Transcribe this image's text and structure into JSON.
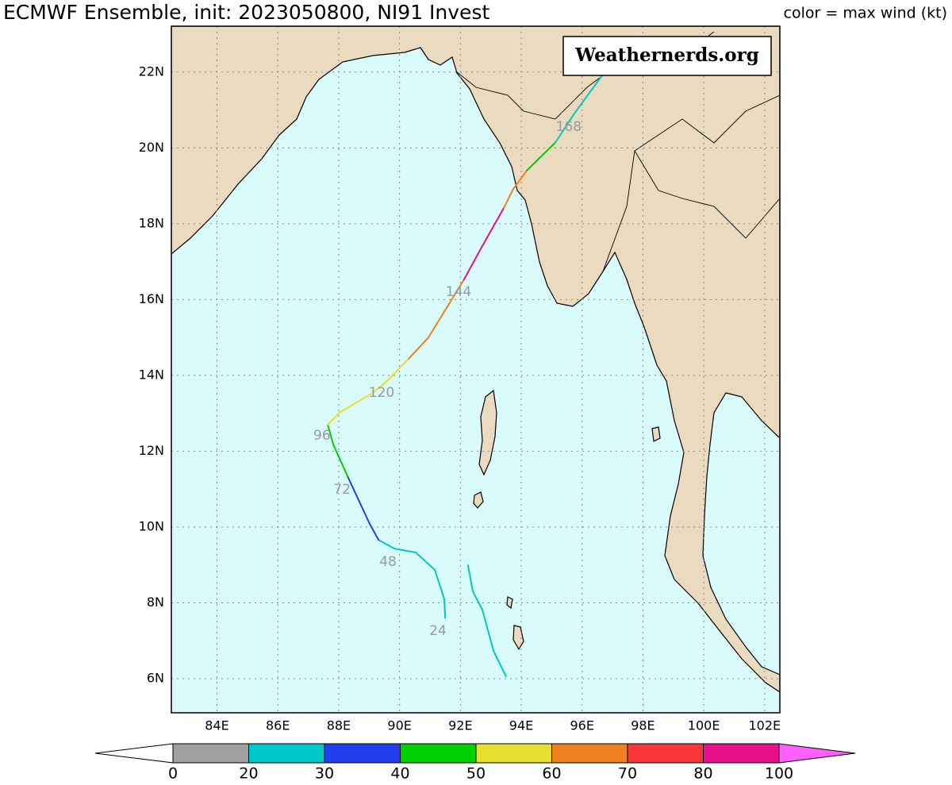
{
  "header": {
    "title": "ECMWF Ensemble, init: 2023050800, NI91 Invest",
    "legend_title": "color = max wind (kt)"
  },
  "watermark": "Weathernerds.org",
  "map": {
    "lonlim": [
      82.5,
      102.5
    ],
    "latlim": [
      5.1,
      23.21
    ],
    "lat_ticks": [
      {
        "value": 6,
        "label": "6N"
      },
      {
        "value": 8,
        "label": "8N"
      },
      {
        "value": 10,
        "label": "10N"
      },
      {
        "value": 12,
        "label": "12N"
      },
      {
        "value": 14,
        "label": "14N"
      },
      {
        "value": 16,
        "label": "16N"
      },
      {
        "value": 18,
        "label": "18N"
      },
      {
        "value": 20,
        "label": "20N"
      },
      {
        "value": 22,
        "label": "22N"
      }
    ],
    "lon_ticks": [
      {
        "value": 84,
        "label": "84E"
      },
      {
        "value": 86,
        "label": "86E"
      },
      {
        "value": 88,
        "label": "88E"
      },
      {
        "value": 90,
        "label": "90E"
      },
      {
        "value": 92,
        "label": "92E"
      },
      {
        "value": 94,
        "label": "94E"
      },
      {
        "value": 96,
        "label": "96E"
      },
      {
        "value": 98,
        "label": "98E"
      },
      {
        "value": 100,
        "label": "100E"
      },
      {
        "value": 102,
        "label": "102E"
      }
    ]
  },
  "tracks": [
    {
      "lon": [
        91.5,
        91.47,
        91.16,
        90.53,
        89.83,
        89.31,
        89.02,
        88.29,
        87.82,
        87.64,
        88.03,
        89.12,
        89.59,
        90.3,
        90.95,
        92.12,
        92.72,
        93.43,
        93.74,
        94.18,
        95.12,
        95.75,
        96.74
      ],
      "lat": [
        7.6,
        8.1,
        8.87,
        9.33,
        9.43,
        9.66,
        10.08,
        11.34,
        12.18,
        12.7,
        13.02,
        13.54,
        13.85,
        14.44,
        15.0,
        16.53,
        17.41,
        18.42,
        18.92,
        19.4,
        20.14,
        20.91,
        22.0
      ],
      "wind": [
        25,
        25,
        25,
        25,
        25,
        35,
        35,
        45,
        45,
        55,
        55,
        55,
        55,
        65,
        65,
        85,
        85,
        65,
        65,
        45,
        25,
        25
      ]
    },
    {
      "lon": [
        92.25,
        92.41,
        92.72,
        93.09,
        93.5
      ],
      "lat": [
        8.99,
        8.3,
        7.82,
        6.73,
        6.06
      ],
      "wind": [
        25,
        25,
        25,
        25
      ]
    }
  ],
  "hour_labels": [
    {
      "text": "24",
      "lon": 91.26,
      "lat": 7.26
    },
    {
      "text": "48",
      "lon": 89.62,
      "lat": 9.08
    },
    {
      "text": "72",
      "lon": 88.11,
      "lat": 10.98
    },
    {
      "text": "96",
      "lon": 87.45,
      "lat": 12.41
    },
    {
      "text": "120",
      "lon": 89.41,
      "lat": 13.54
    },
    {
      "text": "144",
      "lon": 91.94,
      "lat": 16.2
    },
    {
      "text": "168",
      "lon": 95.56,
      "lat": 20.55
    }
  ],
  "colorbar": {
    "bounds": [
      0,
      20,
      30,
      40,
      50,
      60,
      70,
      80,
      100
    ],
    "colors": [
      "#a0a0a0",
      "#00c8c8",
      "#2040f0",
      "#00d000",
      "#e8e030",
      "#f08020",
      "#f83838",
      "#e8108a"
    ],
    "under_color": "#ffffff",
    "over_color": "#ff60ff"
  }
}
